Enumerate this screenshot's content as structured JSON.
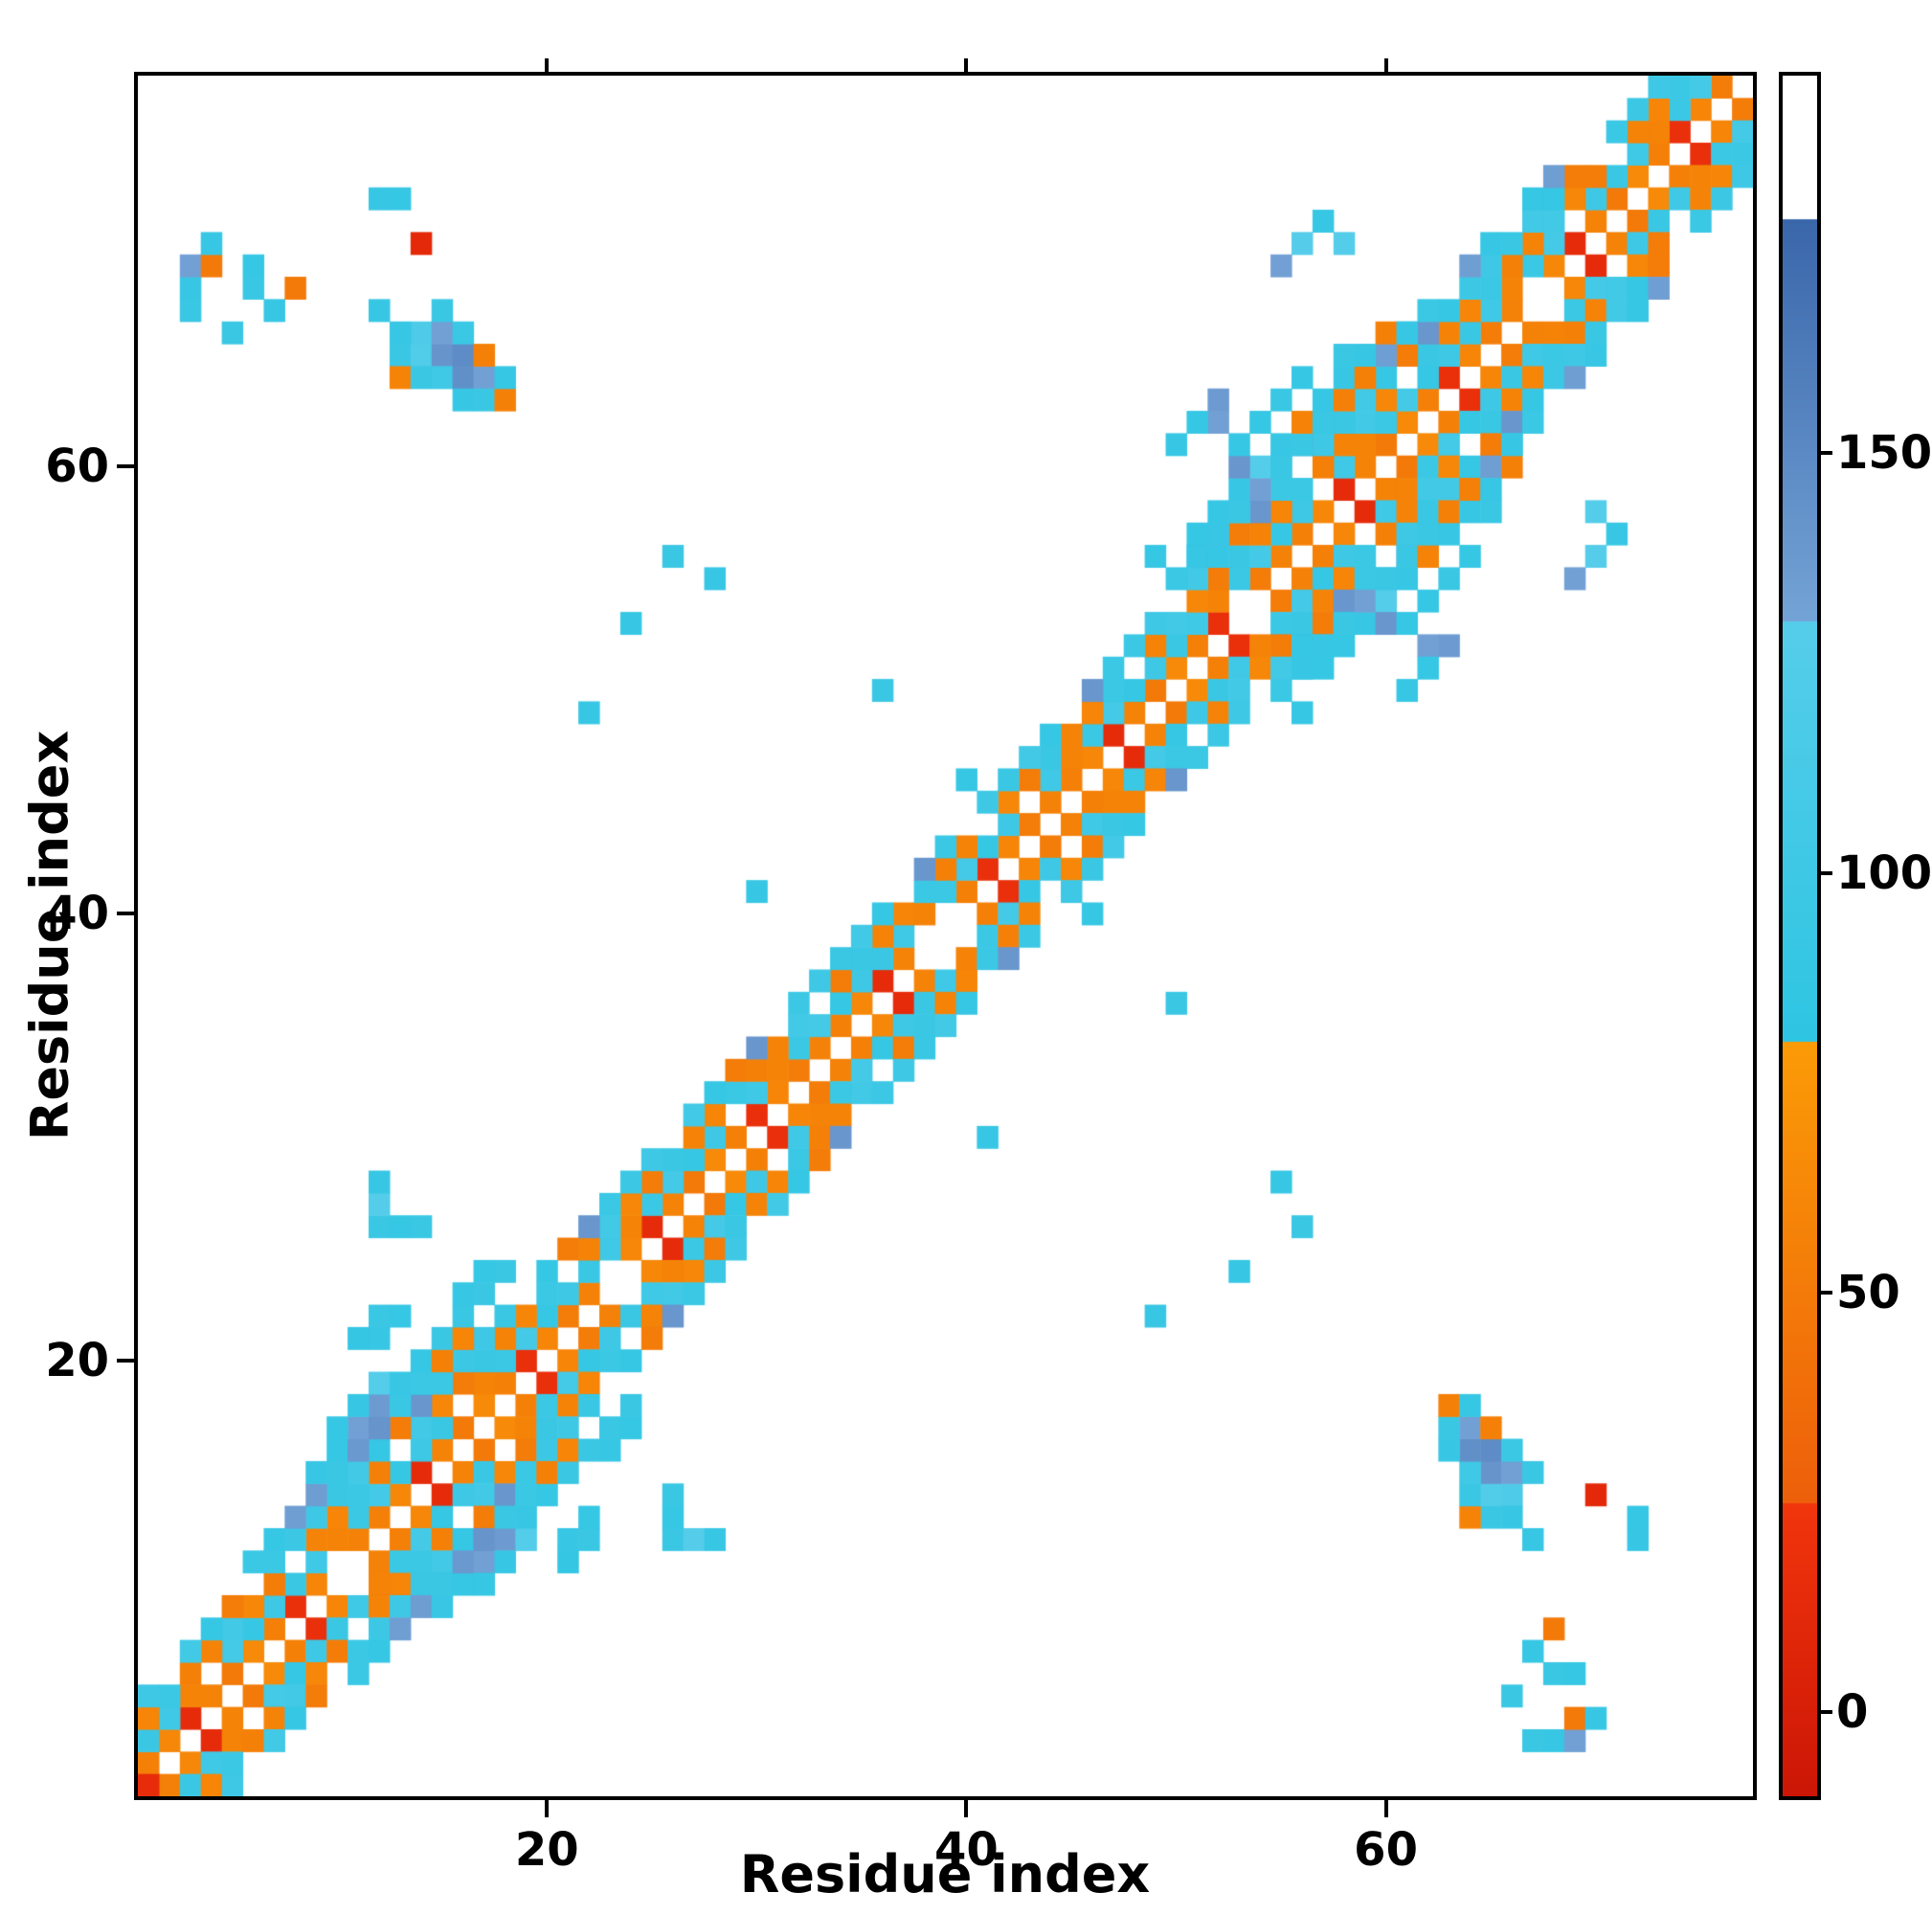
{
  "chart_data": {
    "type": "heatmap",
    "title": "",
    "xlabel": "Residue index",
    "ylabel": "Residue index",
    "n_residues": 77,
    "x_ticks": [
      20,
      40,
      60
    ],
    "y_ticks": [
      20,
      40,
      60
    ],
    "grid": false,
    "legend": false,
    "colorbar": {
      "position": "right",
      "ticks": [
        0,
        50,
        100,
        150
      ],
      "vmin": -10,
      "vmax": 195,
      "stops": [
        {
          "v0": -10,
          "v1": 25,
          "c0": "#cc1606",
          "c1": "#f1350c"
        },
        {
          "v0": 25,
          "v1": 80,
          "c0": "#ed5f0a",
          "c1": "#fb9b07"
        },
        {
          "v0": 80,
          "v1": 130,
          "c0": "#2ec5e2",
          "c1": "#55cdea"
        },
        {
          "v0": 130,
          "v1": 178,
          "c0": "#74a3d6",
          "c1": "#3a66aa"
        },
        {
          "v0": 178,
          "v1": 195,
          "c0": "#ffffff",
          "c1": "#ffffff"
        }
      ]
    },
    "heatmap": {
      "symmetric": true,
      "background_value": null,
      "band": [
        {
          "offset": 1,
          "ranges": [
            [
              1,
              76
            ]
          ],
          "cycle": [
            55,
            62,
            14,
            58,
            50,
            64,
            55,
            18,
            60,
            52,
            57
          ],
          "gaps": [
            10,
            23,
            38,
            39,
            53,
            67
          ]
        },
        {
          "offset": 2,
          "ranges": [
            [
              1,
              75
            ]
          ],
          "cycle": [
            95,
            102,
            58,
            96,
            108,
            90,
            100
          ],
          "gaps": [
            4,
            16,
            29,
            43,
            57,
            69
          ]
        },
        {
          "offset": 3,
          "ranges": [
            [
              1,
              74
            ]
          ],
          "cycle": [
            60,
            96,
            55,
            58,
            104,
            62,
            52,
            94,
            58
          ],
          "gaps": [
            8,
            13,
            21,
            33,
            41,
            48,
            61,
            71
          ]
        },
        {
          "offset": 4,
          "ranges": [
            [
              1,
              73
            ]
          ],
          "cycle": [
            100,
            94,
            106,
            90,
            52,
            140,
            96,
            98
          ],
          "gaps": [
            2,
            6,
            19,
            26,
            31,
            37,
            40,
            45,
            50,
            56,
            63,
            70
          ]
        },
        {
          "offset": 5,
          "ranges": [
            [
              6,
              16
            ],
            [
              50,
              68
            ]
          ],
          "cycle": [
            96,
            90,
            134,
            92
          ],
          "gaps": [
            9,
            13,
            54,
            58,
            63,
            66
          ]
        }
      ],
      "points": [
        [
          1,
          1,
          15
        ],
        [
          9,
          14,
          135
        ],
        [
          9,
          15,
          92
        ],
        [
          10,
          15,
          95
        ],
        [
          10,
          16,
          90
        ],
        [
          11,
          16,
          138
        ],
        [
          11,
          17,
          132
        ],
        [
          12,
          17,
          142
        ],
        [
          12,
          18,
          136
        ],
        [
          12,
          19,
          128
        ],
        [
          13,
          18,
          95
        ],
        [
          13,
          19,
          92
        ],
        [
          10,
          17,
          90
        ],
        [
          11,
          18,
          92
        ],
        [
          14,
          19,
          96
        ],
        [
          14,
          20,
          90
        ],
        [
          15,
          20,
          55
        ],
        [
          15,
          21,
          95
        ],
        [
          16,
          21,
          60
        ],
        [
          12,
          21,
          92
        ],
        [
          12,
          22,
          95
        ],
        [
          13,
          22,
          90
        ],
        [
          11,
          21,
          88
        ],
        [
          16,
          22,
          95
        ],
        [
          16,
          23,
          92
        ],
        [
          17,
          23,
          95
        ],
        [
          18,
          24,
          95
        ],
        [
          17,
          24,
          90
        ],
        [
          12,
          26,
          95
        ],
        [
          12,
          27,
          130
        ],
        [
          12,
          28,
          92
        ],
        [
          13,
          26,
          90
        ],
        [
          14,
          26,
          95
        ],
        [
          22,
          49,
          92
        ],
        [
          26,
          56,
          95
        ],
        [
          28,
          55,
          92
        ],
        [
          36,
          50,
          95
        ],
        [
          40,
          46,
          90
        ],
        [
          30,
          41,
          92
        ],
        [
          24,
          53,
          92
        ],
        [
          49,
          56,
          90
        ],
        [
          51,
          56,
          92
        ],
        [
          51,
          57,
          90
        ],
        [
          52,
          57,
          92
        ],
        [
          52,
          58,
          90
        ],
        [
          53,
          58,
          95
        ],
        [
          53,
          59,
          92
        ],
        [
          54,
          59,
          132
        ],
        [
          54,
          60,
          128
        ],
        [
          53,
          60,
          140
        ],
        [
          55,
          60,
          95
        ],
        [
          55,
          61,
          92
        ],
        [
          56,
          61,
          95
        ],
        [
          56,
          62,
          58
        ],
        [
          57,
          62,
          95
        ],
        [
          57,
          63,
          92
        ],
        [
          58,
          63,
          55
        ],
        [
          53,
          61,
          90
        ],
        [
          54,
          62,
          90
        ],
        [
          52,
          62,
          132
        ],
        [
          52,
          63,
          136
        ],
        [
          58,
          64,
          92
        ],
        [
          59,
          64,
          55
        ],
        [
          51,
          62,
          90
        ],
        [
          50,
          61,
          92
        ],
        [
          55,
          63,
          95
        ],
        [
          56,
          64,
          90
        ],
        [
          58,
          65,
          95
        ],
        [
          59,
          65,
          92
        ],
        [
          60,
          66,
          55
        ],
        [
          61,
          66,
          92
        ],
        [
          63,
          67,
          90
        ],
        [
          55,
          69,
          132
        ],
        [
          56,
          70,
          130
        ],
        [
          58,
          70,
          128
        ],
        [
          57,
          71,
          92
        ],
        [
          13,
          65,
          95
        ],
        [
          14,
          65,
          125
        ],
        [
          15,
          65,
          142
        ],
        [
          16,
          65,
          148
        ],
        [
          14,
          66,
          120
        ],
        [
          15,
          66,
          132
        ],
        [
          16,
          66,
          96
        ],
        [
          15,
          64,
          102
        ],
        [
          16,
          64,
          146
        ],
        [
          17,
          64,
          132
        ],
        [
          17,
          65,
          55
        ],
        [
          13,
          64,
          58
        ],
        [
          16,
          63,
          92
        ],
        [
          17,
          63,
          95
        ],
        [
          14,
          64,
          95
        ],
        [
          12,
          67,
          92
        ],
        [
          15,
          67,
          95
        ],
        [
          18,
          63,
          55
        ],
        [
          18,
          64,
          90
        ],
        [
          13,
          66,
          92
        ],
        [
          14,
          70,
          12
        ],
        [
          3,
          67,
          95
        ],
        [
          3,
          68,
          92
        ],
        [
          3,
          69,
          132
        ],
        [
          4,
          69,
          50
        ],
        [
          4,
          70,
          92
        ],
        [
          6,
          68,
          95
        ],
        [
          6,
          69,
          90
        ],
        [
          7,
          67,
          92
        ],
        [
          5,
          66,
          95
        ],
        [
          8,
          68,
          50
        ],
        [
          12,
          72,
          92
        ],
        [
          13,
          72,
          90
        ]
      ]
    }
  }
}
